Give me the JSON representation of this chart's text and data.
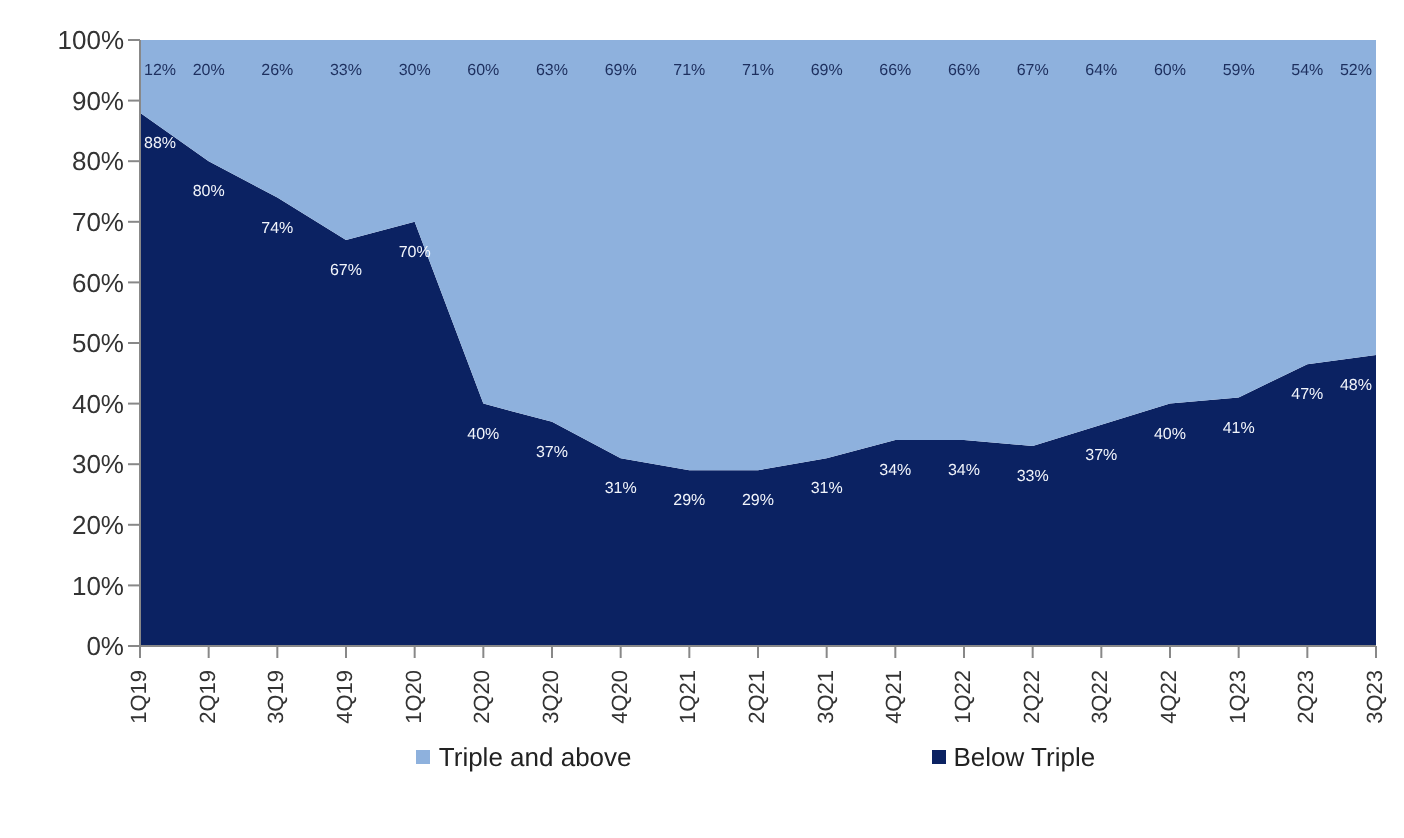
{
  "chart_data": {
    "type": "area",
    "stacked": true,
    "categories": [
      "1Q19",
      "2Q19",
      "3Q19",
      "4Q19",
      "1Q20",
      "2Q20",
      "3Q20",
      "4Q20",
      "1Q21",
      "2Q21",
      "3Q21",
      "4Q21",
      "1Q22",
      "2Q22",
      "3Q22",
      "4Q22",
      "1Q23",
      "2Q23",
      "3Q23"
    ],
    "series": [
      {
        "name": "Below Triple",
        "color": "#0b2262",
        "values": [
          88,
          80,
          74,
          67,
          70,
          40,
          37,
          31,
          29,
          29,
          31,
          34,
          34,
          33,
          36.5,
          40,
          41,
          46.5,
          48
        ],
        "value_labels": [
          "88%",
          "80%",
          "74%",
          "67%",
          "70%",
          "40%",
          "37%",
          "31%",
          "29%",
          "29%",
          "31%",
          "34%",
          "34%",
          "33%",
          "37%",
          "40%",
          "41%",
          "47%",
          "48%"
        ]
      },
      {
        "name": "Triple and above",
        "color": "#8eb1dd",
        "values": [
          12,
          20,
          26,
          33,
          30,
          60,
          63,
          69,
          71,
          71,
          69,
          66,
          66,
          67,
          63.5,
          60,
          59,
          53.5,
          52
        ],
        "value_labels": [
          "12%",
          "20%",
          "26%",
          "33%",
          "30%",
          "60%",
          "63%",
          "69%",
          "71%",
          "71%",
          "69%",
          "66%",
          "66%",
          "67%",
          "64%",
          "60%",
          "59%",
          "54%",
          "52%"
        ]
      }
    ],
    "ylim": [
      0,
      100
    ],
    "yticks": [
      {
        "value": 0,
        "label": "0%"
      },
      {
        "value": 10,
        "label": "10%"
      },
      {
        "value": 20,
        "label": "20%"
      },
      {
        "value": 30,
        "label": "30%"
      },
      {
        "value": 40,
        "label": "40%"
      },
      {
        "value": 50,
        "label": "50%"
      },
      {
        "value": 60,
        "label": "60%"
      },
      {
        "value": 70,
        "label": "70%"
      },
      {
        "value": 80,
        "label": "80%"
      },
      {
        "value": 90,
        "label": "90%"
      },
      {
        "value": 100,
        "label": "100%"
      }
    ],
    "legend": "bottom"
  }
}
